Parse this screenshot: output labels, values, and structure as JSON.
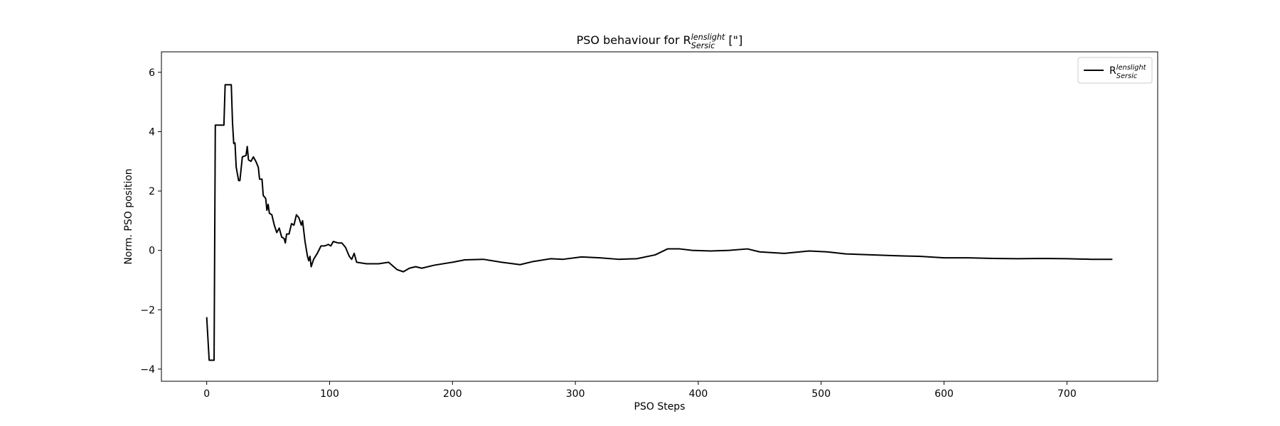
{
  "chart_data": {
    "type": "line",
    "title": {
      "text": "PSO behaviour for R",
      "sub": "Sersic",
      "sup": "lenslight",
      "suffix": " [\"]"
    },
    "x_label": "PSO Steps",
    "y_label": "Norm. PSO position",
    "x": [
      0,
      2,
      6,
      7,
      14,
      15,
      20,
      21,
      22,
      23,
      24,
      26,
      27,
      29,
      32,
      33,
      34,
      36,
      38,
      40,
      42,
      43,
      45,
      46,
      48,
      49,
      50,
      51,
      53,
      55,
      57,
      59,
      61,
      63,
      64,
      65,
      67,
      69,
      71,
      73,
      75,
      77,
      78,
      80,
      82,
      83,
      84,
      85,
      87,
      90,
      93,
      96,
      99,
      101,
      103,
      107,
      110,
      113,
      116,
      118,
      120,
      122,
      130,
      140,
      148,
      155,
      160,
      165,
      170,
      175,
      185,
      200,
      210,
      225,
      240,
      255,
      265,
      280,
      290,
      305,
      320,
      335,
      350,
      365,
      375,
      385,
      395,
      410,
      425,
      440,
      450,
      470,
      490,
      505,
      520,
      540,
      560,
      580,
      600,
      620,
      640,
      660,
      680,
      700,
      720,
      737
    ],
    "series": [
      {
        "name": {
          "text": "R",
          "sub": "Sersic",
          "sup": "lenslight"
        },
        "color": "#000000",
        "values": [
          -2.25,
          -3.7,
          -3.7,
          4.22,
          4.22,
          5.58,
          5.58,
          4.3,
          3.6,
          3.62,
          2.8,
          2.35,
          2.35,
          3.15,
          3.2,
          3.5,
          3.05,
          3.0,
          3.15,
          3.0,
          2.8,
          2.4,
          2.4,
          1.85,
          1.75,
          1.35,
          1.55,
          1.25,
          1.2,
          0.85,
          0.6,
          0.75,
          0.45,
          0.4,
          0.25,
          0.55,
          0.55,
          0.9,
          0.85,
          1.2,
          1.1,
          0.85,
          1.0,
          0.3,
          -0.2,
          -0.35,
          -0.2,
          -0.55,
          -0.3,
          -0.1,
          0.15,
          0.15,
          0.2,
          0.15,
          0.3,
          0.25,
          0.25,
          0.1,
          -0.2,
          -0.3,
          -0.1,
          -0.4,
          -0.45,
          -0.45,
          -0.4,
          -0.65,
          -0.72,
          -0.6,
          -0.55,
          -0.6,
          -0.5,
          -0.4,
          -0.32,
          -0.3,
          -0.4,
          -0.48,
          -0.38,
          -0.28,
          -0.3,
          -0.22,
          -0.25,
          -0.3,
          -0.28,
          -0.15,
          0.05,
          0.05,
          0.0,
          -0.02,
          0.0,
          0.05,
          -0.05,
          -0.1,
          -0.02,
          -0.05,
          -0.12,
          -0.15,
          -0.18,
          -0.2,
          -0.25,
          -0.25,
          -0.27,
          -0.28,
          -0.27,
          -0.28,
          -0.3,
          -0.3
        ]
      }
    ],
    "xlim": [
      -36.85,
      773.85
    ],
    "ylim": [
      -4.41,
      6.69
    ],
    "xticks": [
      0,
      100,
      200,
      300,
      400,
      500,
      600,
      700
    ],
    "yticks": [
      {
        "value": -4,
        "label": "−4"
      },
      {
        "value": -2,
        "label": "−2"
      },
      0,
      2,
      4,
      6
    ],
    "grid": false,
    "legend": "upper right"
  }
}
